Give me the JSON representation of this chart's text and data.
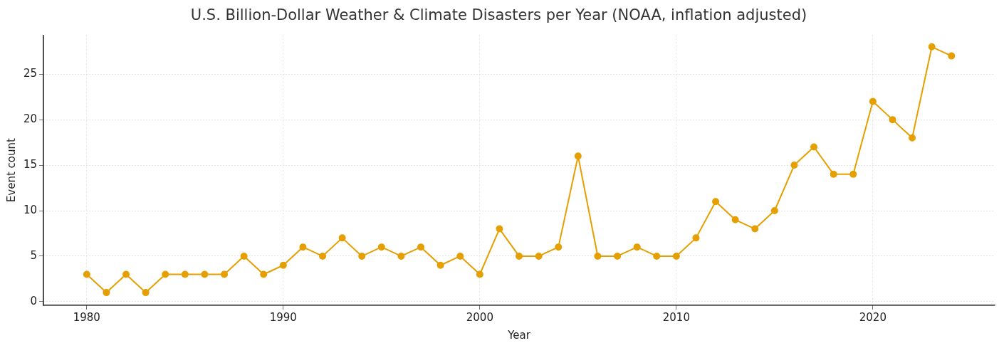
{
  "chart_data": {
    "type": "line",
    "title": "U.S. Billion-Dollar Weather & Climate Disasters per Year (NOAA, inflation adjusted)",
    "xlabel": "Year",
    "ylabel": "Event count",
    "x": [
      1980,
      1981,
      1982,
      1983,
      1984,
      1985,
      1986,
      1987,
      1988,
      1989,
      1990,
      1991,
      1992,
      1993,
      1994,
      1995,
      1996,
      1997,
      1998,
      1999,
      2000,
      2001,
      2002,
      2003,
      2004,
      2005,
      2006,
      2007,
      2008,
      2009,
      2010,
      2011,
      2012,
      2013,
      2014,
      2015,
      2016,
      2017,
      2018,
      2019,
      2020,
      2021,
      2022,
      2023,
      2024
    ],
    "series": [
      {
        "color": "#e69f00",
        "values": [
          3,
          1,
          3,
          1,
          3,
          3,
          3,
          3,
          5,
          3,
          4,
          6,
          5,
          7,
          5,
          6,
          5,
          6,
          4,
          5,
          3,
          8,
          5,
          5,
          6,
          16,
          5,
          5,
          6,
          5,
          5,
          7,
          11,
          9,
          8,
          10,
          15,
          17,
          14,
          14,
          22,
          20,
          18,
          28,
          27
        ]
      }
    ],
    "xlim": [
      1977.8,
      2026.2
    ],
    "xticks": [
      1980,
      1990,
      2000,
      2010,
      2020
    ],
    "ylim": [
      -0.4,
      29.3
    ],
    "yticks": [
      0,
      5,
      10,
      15,
      20,
      25
    ],
    "grid": true,
    "legend": false,
    "marker": "circle",
    "line_style": "solid"
  }
}
